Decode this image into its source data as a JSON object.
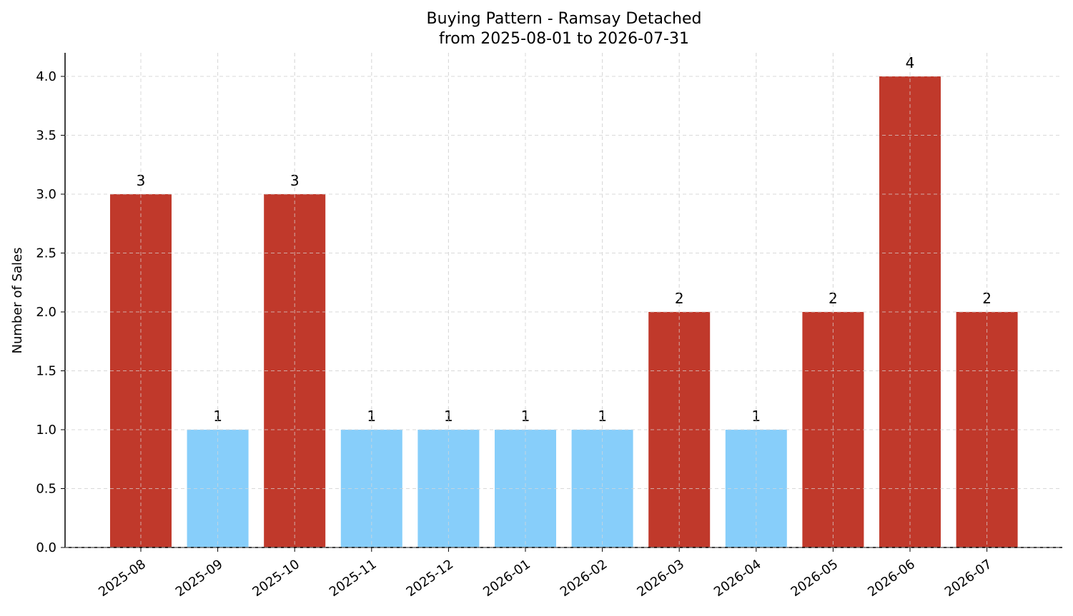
{
  "chart_data": {
    "type": "bar",
    "title": "Buying Pattern - Ramsay Detached",
    "subtitle": "from 2025-08-01 to 2026-07-31",
    "xlabel": "",
    "ylabel": "Number of Sales",
    "categories": [
      "2025-08",
      "2025-09",
      "2025-10",
      "2025-11",
      "2025-12",
      "2026-01",
      "2026-02",
      "2026-03",
      "2026-04",
      "2026-05",
      "2026-06",
      "2026-07"
    ],
    "values": [
      3,
      1,
      3,
      1,
      1,
      1,
      1,
      2,
      1,
      2,
      4,
      2
    ],
    "data_labels": [
      "3",
      "1",
      "3",
      "1",
      "1",
      "1",
      "1",
      "2",
      "1",
      "2",
      "4",
      "2"
    ],
    "ylim": [
      0,
      4.2
    ],
    "yticks": [
      0.0,
      0.5,
      1.0,
      1.5,
      2.0,
      2.5,
      3.0,
      3.5,
      4.0
    ],
    "ytick_labels": [
      "0.0",
      "0.5",
      "1.0",
      "1.5",
      "2.0",
      "2.5",
      "3.0",
      "3.5",
      "4.0"
    ],
    "grid": true,
    "colors": {
      "high": "#c0392b",
      "low": "#87cefa",
      "grid": "#d9d9d9",
      "axis": "#000000"
    }
  }
}
